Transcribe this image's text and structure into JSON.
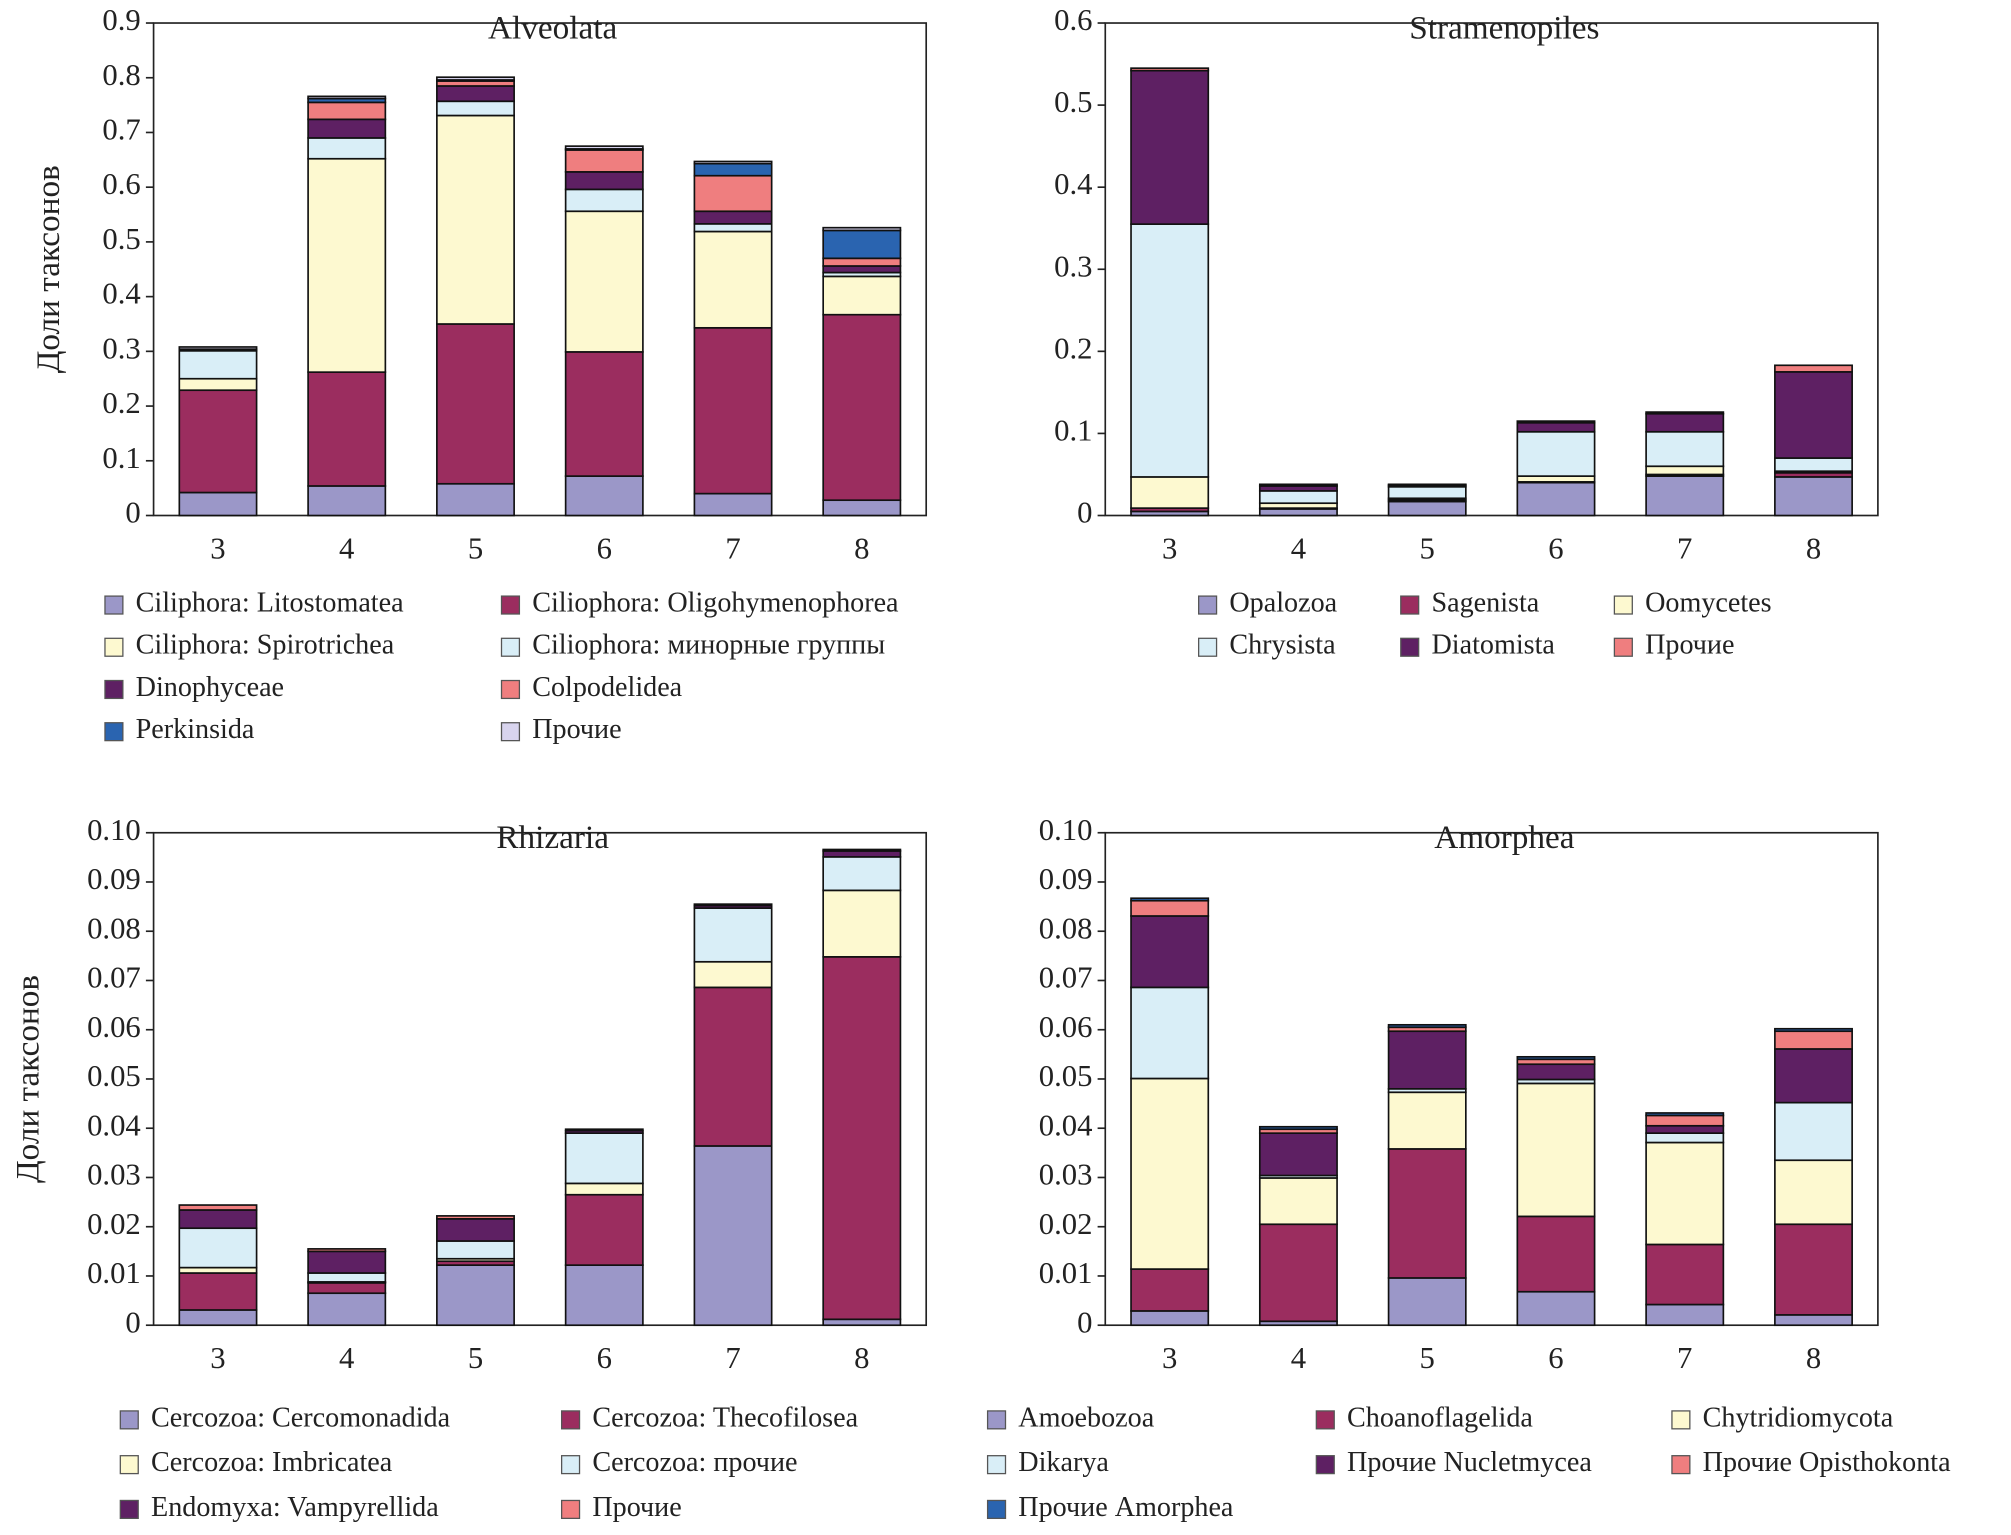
{
  "chart_data": [
    {
      "type": "bar",
      "stacked": true,
      "title": "Alveolata",
      "y_label": "Доли таксонов",
      "categories": [
        "3",
        "4",
        "5",
        "6",
        "7",
        "8"
      ],
      "ylim": [
        0,
        0.9
      ],
      "yticks": [
        0,
        0.1,
        0.2,
        0.3,
        0.4,
        0.5,
        0.6,
        0.7,
        0.8,
        0.9
      ],
      "series": [
        {
          "name": "Ciliphora: Litostomatea",
          "color": "#9b97c8",
          "values": [
            0.042,
            0.054,
            0.058,
            0.072,
            0.04,
            0.028
          ]
        },
        {
          "name": "Ciliophora: Oligohymenophorea",
          "color": "#9b2d5f",
          "values": [
            0.187,
            0.208,
            0.292,
            0.227,
            0.303,
            0.339
          ]
        },
        {
          "name": "Ciliphora: Spirotrichea",
          "color": "#fdf9d0",
          "values": [
            0.021,
            0.39,
            0.381,
            0.257,
            0.176,
            0.07
          ]
        },
        {
          "name": "Ciliophora: минорные группы",
          "color": "#d9eef7",
          "values": [
            0.051,
            0.038,
            0.026,
            0.04,
            0.014,
            0.007
          ]
        },
        {
          "name": "Dinophyceae",
          "color": "#5e2063",
          "values": [
            0.003,
            0.034,
            0.028,
            0.032,
            0.023,
            0.012
          ]
        },
        {
          "name": "Colpodelidea",
          "color": "#ef7e7f",
          "values": [
            0,
            0.031,
            0.009,
            0.04,
            0.065,
            0.014
          ]
        },
        {
          "name": "Perkinsida",
          "color": "#2a64b0",
          "values": [
            0,
            0.007,
            0.002,
            0.002,
            0.022,
            0.051
          ]
        },
        {
          "name": "Прочие",
          "color": "#d8d4ee",
          "values": [
            0.004,
            0.004,
            0.005,
            0.005,
            0.004,
            0.005
          ]
        }
      ]
    },
    {
      "type": "bar",
      "stacked": true,
      "title": "Stramenopiles",
      "categories": [
        "3",
        "4",
        "5",
        "6",
        "7",
        "8"
      ],
      "ylim": [
        0,
        0.6
      ],
      "yticks": [
        0,
        0.1,
        0.2,
        0.3,
        0.4,
        0.5,
        0.6
      ],
      "series": [
        {
          "name": "Opalozoa",
          "color": "#9b97c8",
          "values": [
            0.005,
            0.008,
            0.017,
            0.04,
            0.048,
            0.047
          ]
        },
        {
          "name": "Sagenista",
          "color": "#9b2d5f",
          "values": [
            0.004,
            0.001,
            0.002,
            0.001,
            0.002,
            0.005
          ]
        },
        {
          "name": "Oomycetes",
          "color": "#fdf9d0",
          "values": [
            0.038,
            0.006,
            0.002,
            0.007,
            0.01,
            0.002
          ]
        },
        {
          "name": "Chrysista",
          "color": "#d9eef7",
          "values": [
            0.308,
            0.015,
            0.014,
            0.054,
            0.042,
            0.016
          ]
        },
        {
          "name": "Diatomista",
          "color": "#5e2063",
          "values": [
            0.187,
            0.006,
            0.002,
            0.011,
            0.022,
            0.105
          ]
        },
        {
          "name": "Прочие",
          "color": "#ef7e7f",
          "values": [
            0.003,
            0.002,
            0.001,
            0.002,
            0.002,
            0.008
          ]
        }
      ]
    },
    {
      "type": "bar",
      "stacked": true,
      "title": "Rhizaria",
      "y_label": "Доли таксонов",
      "categories": [
        "3",
        "4",
        "5",
        "6",
        "7",
        "8"
      ],
      "ylim": [
        0,
        0.1
      ],
      "yticks": [
        0,
        0.01,
        0.02,
        0.03,
        0.04,
        0.05,
        0.06,
        0.07,
        0.08,
        0.09,
        {
          "value": 0.1,
          "label": "0.10"
        }
      ],
      "series": [
        {
          "name": "Cercozoa: Cercomonadida",
          "color": "#9b97c8",
          "values": [
            0.0031,
            0.0065,
            0.0122,
            0.0122,
            0.0364,
            0.0012
          ]
        },
        {
          "name": "Cercozoa: Thecofilosea",
          "color": "#9b2d5f",
          "values": [
            0.0075,
            0.0021,
            0.0008,
            0.0143,
            0.0322,
            0.0736
          ]
        },
        {
          "name": "Cercozoa: Imbricatea",
          "color": "#fdf9d0",
          "values": [
            0.0011,
            0.0002,
            0.0005,
            0.0023,
            0.0052,
            0.0135
          ]
        },
        {
          "name": "Cercozoa: прочие",
          "color": "#d9eef7",
          "values": [
            0.008,
            0.0018,
            0.0036,
            0.0102,
            0.0109,
            0.0068
          ]
        },
        {
          "name": "Endomyxa: Vampyrellida",
          "color": "#5e2063",
          "values": [
            0.0037,
            0.0044,
            0.0045,
            0.0005,
            0.0005,
            0.0012
          ]
        },
        {
          "name": "Прочие",
          "color": "#ef7e7f",
          "values": [
            0.001,
            0.0005,
            0.0006,
            0.0003,
            0.0003,
            0.0003
          ]
        }
      ]
    },
    {
      "type": "bar",
      "stacked": true,
      "title": "Amorphea",
      "categories": [
        "3",
        "4",
        "5",
        "6",
        "7",
        "8"
      ],
      "ylim": [
        0,
        0.1
      ],
      "yticks": [
        0,
        0.01,
        0.02,
        0.03,
        0.04,
        0.05,
        0.06,
        0.07,
        0.08,
        0.09,
        {
          "value": 0.1,
          "label": "0.10"
        }
      ],
      "series": [
        {
          "name": "Amoebozoa",
          "color": "#9b97c8",
          "values": [
            0.0029,
            0.0008,
            0.0096,
            0.0068,
            0.0042,
            0.0021
          ]
        },
        {
          "name": "Choanoflagelida",
          "color": "#9b2d5f",
          "values": [
            0.0085,
            0.0197,
            0.0262,
            0.0153,
            0.0122,
            0.0184
          ]
        },
        {
          "name": "Chytridiomycota",
          "color": "#fdf9d0",
          "values": [
            0.0387,
            0.0094,
            0.0115,
            0.027,
            0.0207,
            0.013
          ]
        },
        {
          "name": "Dikarya",
          "color": "#d9eef7",
          "values": [
            0.0185,
            0.0005,
            0.0007,
            0.0008,
            0.0019,
            0.0117
          ]
        },
        {
          "name": "Прочие Nucletmycea",
          "color": "#5e2063",
          "values": [
            0.0145,
            0.0086,
            0.0117,
            0.0031,
            0.0015,
            0.0109
          ]
        },
        {
          "name": "Прочие Opisthokonta",
          "color": "#ef7e7f",
          "values": [
            0.0031,
            0.0008,
            0.0008,
            0.001,
            0.0021,
            0.0036
          ]
        },
        {
          "name": "Прочие Amorphea",
          "color": "#2a64b0",
          "values": [
            0.0005,
            0.0005,
            0.0005,
            0.0005,
            0.0005,
            0.0005
          ]
        }
      ]
    }
  ]
}
